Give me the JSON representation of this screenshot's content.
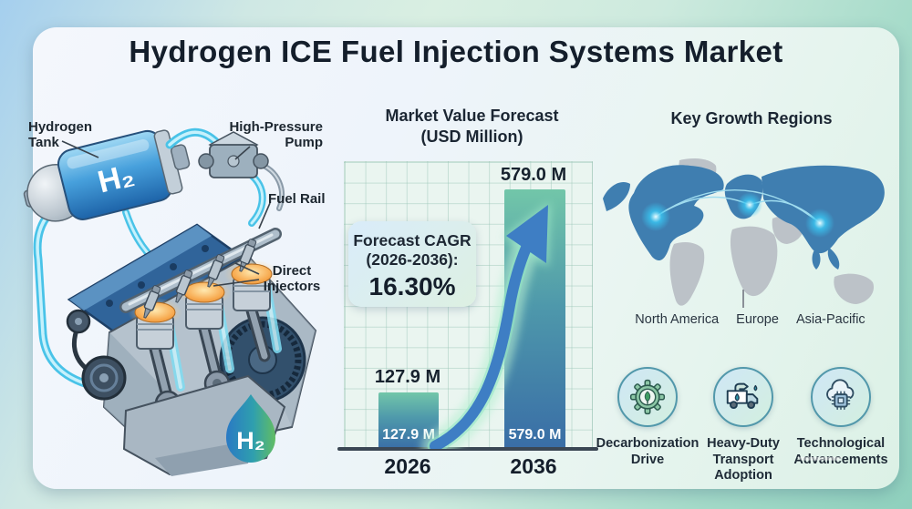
{
  "title": "Hydrogen ICE Fuel Injection Systems Market",
  "engine_diagram": {
    "labels": {
      "tank": "Hydrogen Tank",
      "pump": "High-Pressure Pump",
      "fuel_rail": "Fuel Rail",
      "injectors": "Direct Injectors"
    },
    "tank_marking": "H₂",
    "logo": "H₂"
  },
  "chart": {
    "title_line1": "Market Value Forecast",
    "title_line2": "(USD Million)",
    "cagr_line1": "Forecast CAGR",
    "cagr_line2": "(2026-2036):",
    "cagr_value": "16.30%"
  },
  "chart_data": {
    "type": "bar",
    "title": "Market Value Forecast (USD Million)",
    "categories": [
      "2026",
      "2036"
    ],
    "values": [
      127.9,
      579.0
    ],
    "value_labels": [
      "127.9 M",
      "579.0 M"
    ],
    "ylabel": "USD Million",
    "ylim": [
      0,
      640
    ],
    "grid": true,
    "legend": false,
    "annotation": "Forecast CAGR (2026-2036): 16.30%"
  },
  "regions": {
    "title": "Key Growth Regions",
    "labels": [
      "North America",
      "Europe",
      "Asia-Pacific"
    ]
  },
  "drivers": [
    {
      "label": "Decarbonization Drive",
      "icon": "gear-leaf-icon"
    },
    {
      "label": "Heavy-Duty Transport Adoption",
      "icon": "fuel-truck-icon"
    },
    {
      "label": "Technological Advancements",
      "icon": "cloud-chip-icon"
    }
  ],
  "colors": {
    "bar_gradient_top": "#72c6a9",
    "bar_gradient_bottom": "#396da6",
    "growth_arrow": "#3e7ec4",
    "arrow_glow": "#9fe8c8",
    "map_highlight": "#3f7eb0",
    "map_base": "#bcc2c8",
    "hotspot": "#39c6f2",
    "pipe_cyan": "#49c3e8",
    "tank_blue": "#47a0dc",
    "flame_gradient": [
      "#2a79c4",
      "#2f9fae",
      "#62bd63"
    ]
  }
}
